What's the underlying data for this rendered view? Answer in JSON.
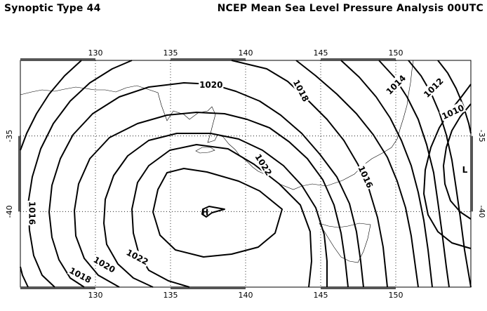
{
  "header": {
    "left_title": "Synoptic Type 44",
    "right_title": "NCEP Mean Sea Level Pressure Analysis 00UTC"
  },
  "map": {
    "lon_range": [
      125,
      155
    ],
    "lat_range": [
      -45,
      -30
    ],
    "lon_ticks": [
      "130",
      "135",
      "140",
      "145",
      "150"
    ],
    "lat_ticks": [
      "-35",
      "-40"
    ],
    "gridlines": "dotted",
    "contour_interval_hpa": 2,
    "contour_labels": [
      {
        "text": "1020",
        "lon": 137.7,
        "lat": -31.6,
        "angle": 0
      },
      {
        "text": "1018",
        "lon": 143.7,
        "lat": -32.0,
        "angle": 62
      },
      {
        "text": "1014",
        "lon": 150.0,
        "lat": -31.6,
        "angle": -45
      },
      {
        "text": "1012",
        "lon": 152.5,
        "lat": -31.8,
        "angle": -45
      },
      {
        "text": "1010",
        "lon": 153.8,
        "lat": -33.4,
        "angle": -25
      },
      {
        "text": "1022",
        "lon": 141.2,
        "lat": -36.9,
        "angle": 58
      },
      {
        "text": "1016",
        "lon": 148.0,
        "lat": -37.7,
        "angle": 65
      },
      {
        "text": "1016",
        "lon": 125.8,
        "lat": -40.1,
        "angle": 90
      },
      {
        "text": "1022",
        "lon": 132.8,
        "lat": -43.0,
        "angle": 28
      },
      {
        "text": "1020",
        "lon": 130.6,
        "lat": -43.5,
        "angle": 30
      },
      {
        "text": "1018",
        "lon": 129.0,
        "lat": -44.2,
        "angle": 28
      }
    ],
    "pressure_centers": [
      {
        "symbol": "H",
        "lon": 137.3,
        "lat": -40.0
      },
      {
        "symbol": "L",
        "lon": 154.6,
        "lat": -37.2
      }
    ]
  }
}
